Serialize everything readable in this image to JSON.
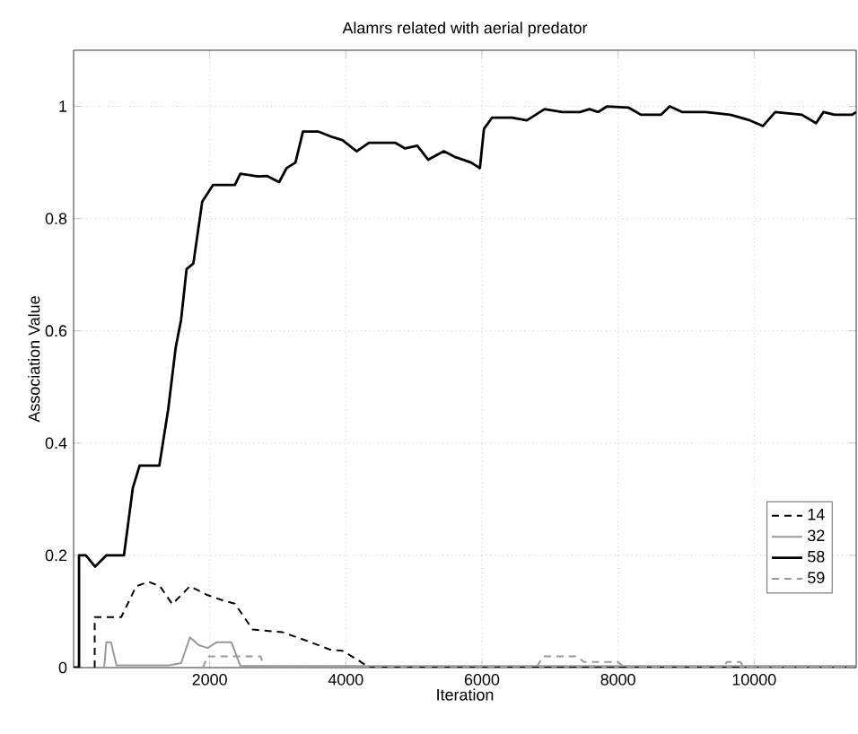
{
  "chart_data": {
    "type": "line",
    "title": "Alamrs related with aerial predator",
    "xlabel": "Iteration",
    "ylabel": "Association Value",
    "xlim": [
      0,
      11500
    ],
    "ylim": [
      0,
      1.1
    ],
    "xticks": [
      2000,
      4000,
      6000,
      8000,
      10000
    ],
    "yticks": [
      0,
      0.2,
      0.4,
      0.6,
      0.8,
      1
    ],
    "grid": true,
    "legend": "bottom right",
    "series": [
      {
        "name": "14",
        "color": "#000000",
        "line_style": "dashed",
        "x": [
          310,
          310,
          700,
          920,
          1100,
          1270,
          1450,
          1710,
          1970,
          2190,
          2370,
          2630,
          3070,
          3420,
          3770,
          3950,
          4210,
          4340,
          11500
        ],
        "values": [
          0,
          0.09,
          0.09,
          0.145,
          0.153,
          0.145,
          0.113,
          0.145,
          0.129,
          0.12,
          0.114,
          0.068,
          0.063,
          0.048,
          0.032,
          0.03,
          0.011,
          0,
          0
        ]
      },
      {
        "name": "32",
        "color": "#999999",
        "line_style": "solid",
        "x": [
          450,
          480,
          550,
          630,
          1400,
          1580,
          1710,
          1840,
          1970,
          2100,
          2320,
          2450,
          11500
        ],
        "values": [
          0,
          0.045,
          0.045,
          0.004,
          0.004,
          0.008,
          0.054,
          0.04,
          0.035,
          0.045,
          0.045,
          0.003,
          0.003
        ]
      },
      {
        "name": "58",
        "color": "#000000",
        "line_style": "solid",
        "x": [
          0,
          80,
          80,
          180,
          315,
          480,
          740,
          870,
          970,
          1260,
          1390,
          1500,
          1580,
          1660,
          1760,
          1890,
          2050,
          2370,
          2450,
          2710,
          2840,
          3020,
          3130,
          3260,
          3370,
          3600,
          3810,
          3950,
          4160,
          4340,
          4470,
          4730,
          4870,
          5050,
          5210,
          5440,
          5600,
          5840,
          5970,
          6030,
          6150,
          6440,
          6660,
          6920,
          7180,
          7440,
          7580,
          7710,
          7840,
          8150,
          8340,
          8630,
          8760,
          8940,
          9290,
          9650,
          9940,
          10130,
          10310,
          10700,
          10910,
          11020,
          11180,
          11440,
          11500
        ],
        "values": [
          0,
          0,
          0.2,
          0.2,
          0.18,
          0.2,
          0.2,
          0.32,
          0.36,
          0.36,
          0.46,
          0.57,
          0.62,
          0.71,
          0.72,
          0.83,
          0.86,
          0.86,
          0.88,
          0.875,
          0.876,
          0.865,
          0.89,
          0.9,
          0.955,
          0.955,
          0.945,
          0.94,
          0.92,
          0.935,
          0.935,
          0.935,
          0.925,
          0.93,
          0.905,
          0.92,
          0.91,
          0.9,
          0.89,
          0.96,
          0.98,
          0.98,
          0.975,
          0.995,
          0.99,
          0.99,
          0.995,
          0.99,
          1.0,
          0.998,
          0.985,
          0.985,
          1.0,
          0.99,
          0.99,
          0.985,
          0.975,
          0.965,
          0.99,
          0.985,
          0.97,
          0.99,
          0.985,
          0.985,
          0.99
        ]
      },
      {
        "name": "59",
        "color": "#999999",
        "line_style": "dashed",
        "x": [
          1900,
          1970,
          2750,
          2800,
          6800,
          6900,
          7400,
          7500,
          8000,
          8100,
          9550,
          9600,
          9800,
          9850,
          11500
        ],
        "values": [
          0,
          0.02,
          0.02,
          0,
          0,
          0.02,
          0.02,
          0.01,
          0.01,
          0,
          0,
          0.01,
          0.01,
          0,
          0
        ]
      }
    ]
  }
}
